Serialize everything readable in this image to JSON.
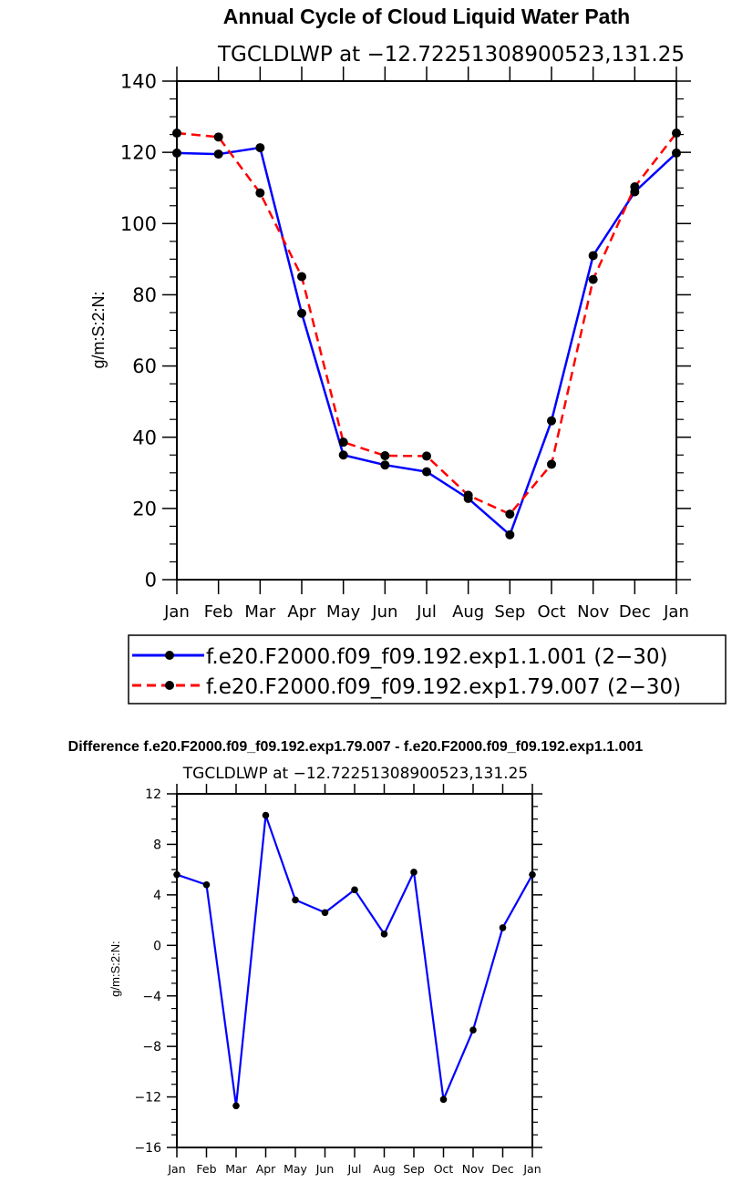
{
  "chart_data": [
    {
      "type": "line",
      "title": "Annual Cycle of Cloud Liquid Water Path",
      "subtitle": "TGCLDLWP  at  −12.72251308900523,131.25",
      "xlabel": "",
      "ylabel": "g/m:S:2:N:",
      "categories": [
        "Jan",
        "Feb",
        "Mar",
        "Apr",
        "May",
        "Jun",
        "Jul",
        "Aug",
        "Sep",
        "Oct",
        "Nov",
        "Dec",
        "Jan"
      ],
      "ylim": [
        0,
        140
      ],
      "yticks": [
        0,
        20,
        40,
        60,
        80,
        100,
        120,
        140
      ],
      "series": [
        {
          "name": "f.e20.F2000.f09_f09.192.exp1.1.001 (2−30)",
          "color": "#0000ff",
          "dash": "solid",
          "values": [
            119.8,
            119.5,
            121.3,
            74.8,
            35.0,
            32.2,
            30.3,
            22.8,
            12.6,
            44.6,
            91.0,
            108.9,
            119.8
          ]
        },
        {
          "name": "f.e20.F2000.f09_f09.192.exp1.79.007 (2−30)",
          "color": "#ff0000",
          "dash": "dashed",
          "values": [
            125.4,
            124.3,
            108.6,
            85.1,
            38.6,
            34.8,
            34.7,
            23.7,
            18.4,
            32.4,
            84.3,
            110.3,
            125.4
          ]
        }
      ],
      "legend": "below"
    },
    {
      "type": "line",
      "title": "Difference f.e20.F2000.f09_f09.192.exp1.79.007 - f.e20.F2000.f09_f09.192.exp1.1.001",
      "subtitle": "TGCLDLWP  at  −12.72251308900523,131.25",
      "xlabel": "",
      "ylabel": "g/m:S:2:N:",
      "categories": [
        "Jan",
        "Feb",
        "Mar",
        "Apr",
        "May",
        "Jun",
        "Jul",
        "Aug",
        "Sep",
        "Oct",
        "Nov",
        "Dec",
        "Jan"
      ],
      "ylim": [
        -16,
        12
      ],
      "yticks": [
        -16,
        -12,
        -8,
        -4,
        0,
        4,
        8,
        12
      ],
      "series": [
        {
          "name": "Difference",
          "color": "#0000ff",
          "dash": "solid",
          "values": [
            5.6,
            4.8,
            -12.7,
            10.3,
            3.6,
            2.6,
            4.4,
            0.9,
            5.8,
            -12.2,
            -6.7,
            1.4,
            5.6
          ]
        }
      ]
    }
  ]
}
